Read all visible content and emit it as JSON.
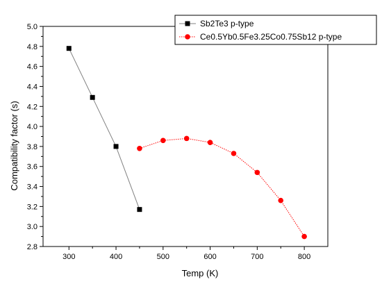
{
  "chart_data": {
    "type": "line",
    "xlabel": "Temp (K)",
    "ylabel": "Compatibility factor (s)",
    "xlim": [
      245,
      850
    ],
    "ylim": [
      2.8,
      5.0
    ],
    "xticks": [
      300,
      400,
      500,
      600,
      700,
      800
    ],
    "yticks": [
      2.8,
      3.0,
      3.2,
      3.4,
      3.6,
      3.8,
      4.0,
      4.2,
      4.4,
      4.6,
      4.8,
      5.0
    ],
    "legend_position": "top-right",
    "grid": false,
    "series": [
      {
        "name": "Sb2Te3 p-type",
        "marker": "square",
        "marker_color": "#000000",
        "line_color": "#808080",
        "x": [
          300,
          350,
          400,
          450
        ],
        "y": [
          4.78,
          4.29,
          3.8,
          3.17
        ]
      },
      {
        "name": "Ce0.5Yb0.5Fe3.25Co0.75Sb12 p-type",
        "marker": "circle",
        "marker_color": "#ff0000",
        "line_color": "#ff0000",
        "line_style": "dotted",
        "x": [
          450,
          500,
          550,
          600,
          650,
          700,
          750,
          800
        ],
        "y": [
          3.78,
          3.86,
          3.88,
          3.84,
          3.73,
          3.54,
          3.26,
          2.9
        ]
      }
    ]
  }
}
